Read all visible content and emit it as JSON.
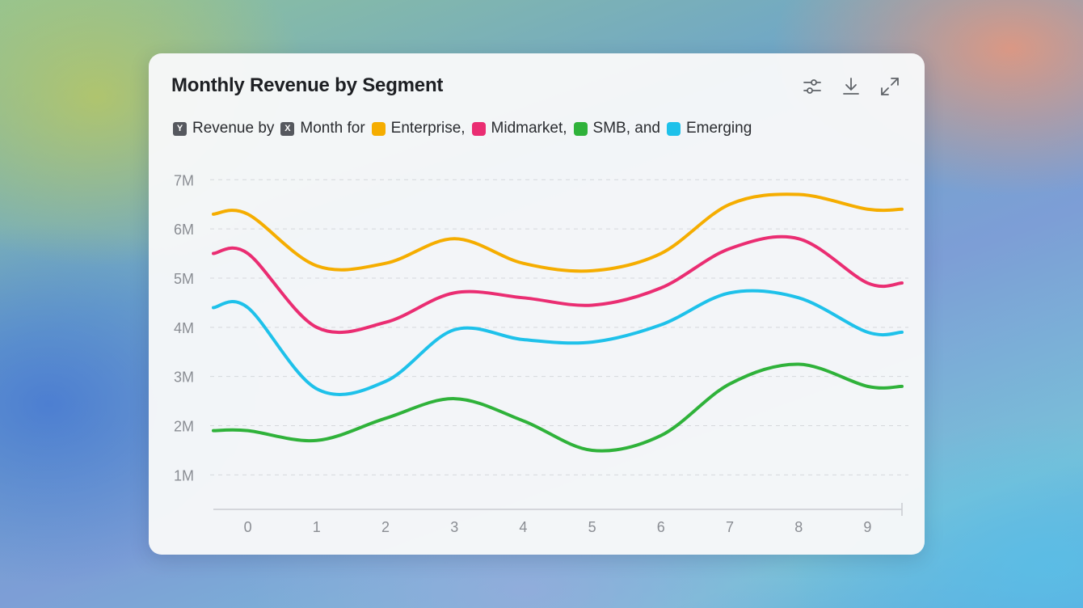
{
  "card": {
    "title": "Monthly Revenue by Segment",
    "toolbar": [
      {
        "icon": "sliders-icon"
      },
      {
        "icon": "download-icon"
      },
      {
        "icon": "expand-icon"
      }
    ]
  },
  "legend": {
    "y_key": "Y",
    "y_text": "Revenue by",
    "x_key": "X",
    "x_text": "Month for",
    "items": [
      {
        "label": "Enterprise,"
      },
      {
        "label": "Midmarket,"
      },
      {
        "label": "SMB, and"
      },
      {
        "label": "Emerging"
      }
    ]
  },
  "chart_data": {
    "type": "line",
    "x": [
      0,
      1,
      2,
      3,
      4,
      5,
      6,
      7,
      8,
      9
    ],
    "x_tick_labels": [
      "0",
      "1",
      "2",
      "3",
      "4",
      "5",
      "6",
      "7",
      "8",
      "9"
    ],
    "y_tick_values": [
      1,
      2,
      3,
      4,
      5,
      6,
      7
    ],
    "y_tick_labels": [
      "1M",
      "2M",
      "3M",
      "4M",
      "5M",
      "6M",
      "7M"
    ],
    "ylim": [
      0.3,
      7.3
    ],
    "xlim": [
      -0.5,
      9.5
    ],
    "grid": true,
    "series": [
      {
        "name": "Enterprise",
        "color": "#f5ad00",
        "values": [
          6.3,
          5.25,
          5.3,
          5.8,
          5.3,
          5.15,
          5.5,
          6.5,
          6.7,
          6.4
        ],
        "endpoints": [
          6.3,
          6.4
        ]
      },
      {
        "name": "Midmarket",
        "color": "#ea2d72",
        "values": [
          5.5,
          4.0,
          4.1,
          4.7,
          4.6,
          4.45,
          4.8,
          5.6,
          5.8,
          4.9
        ],
        "endpoints": [
          5.5,
          4.9
        ]
      },
      {
        "name": "SMB",
        "color": "#2fb23a",
        "values": [
          1.9,
          1.7,
          2.15,
          2.55,
          2.1,
          1.5,
          1.8,
          2.85,
          3.25,
          2.8
        ],
        "endpoints": [
          1.9,
          2.8
        ]
      },
      {
        "name": "Emerging",
        "color": "#1ec1ea",
        "values": [
          4.4,
          2.75,
          2.9,
          3.95,
          3.75,
          3.7,
          4.05,
          4.7,
          4.6,
          3.9
        ],
        "endpoints": [
          4.4,
          3.9
        ]
      }
    ]
  }
}
